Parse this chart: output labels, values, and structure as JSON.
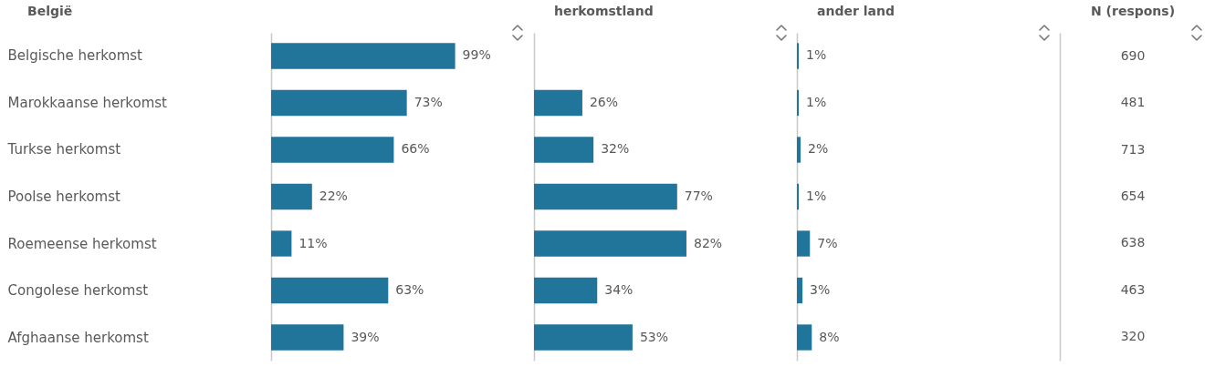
{
  "chart_data": [
    {
      "type": "bar",
      "orientation": "horizontal",
      "title": "België",
      "categories": [
        "Belgische herkomst",
        "Marokkaanse herkomst",
        "Turkse herkomst",
        "Poolse herkomst",
        "Roemeense herkomst",
        "Congolese herkomst",
        "Afghaanse herkomst"
      ],
      "values": [
        99,
        73,
        66,
        22,
        11,
        63,
        39
      ],
      "value_labels": [
        "99%",
        "73%",
        "66%",
        "22%",
        "11%",
        "63%",
        "39%"
      ],
      "color": "#21759b",
      "tick_labels": "y"
    },
    {
      "type": "bar",
      "orientation": "horizontal",
      "title": "herkomstland",
      "categories": [
        null,
        null,
        null,
        null,
        null,
        null,
        null
      ],
      "values": [
        null,
        26,
        32,
        77,
        82,
        34,
        53
      ],
      "value_labels": [
        null,
        "26%",
        "32%",
        "77%",
        "82%",
        "34%",
        "53%"
      ],
      "color": "#21759b",
      "tick_labels": false
    },
    {
      "type": "bar",
      "orientation": "horizontal",
      "title": "ander land",
      "categories": [
        null,
        null,
        null,
        null,
        null,
        null,
        null
      ],
      "values": [
        1,
        1,
        2,
        1,
        7,
        3,
        8
      ],
      "value_labels": [
        "1%",
        "1%",
        "2%",
        "1%",
        "7%",
        "3%",
        "8%"
      ],
      "color": "#21759b",
      "tick_labels": false
    },
    {
      "type": "other",
      "title": "N (respons)",
      "values": [
        690,
        481,
        713,
        654,
        638,
        463,
        320
      ],
      "data_labels": true
    }
  ]
}
